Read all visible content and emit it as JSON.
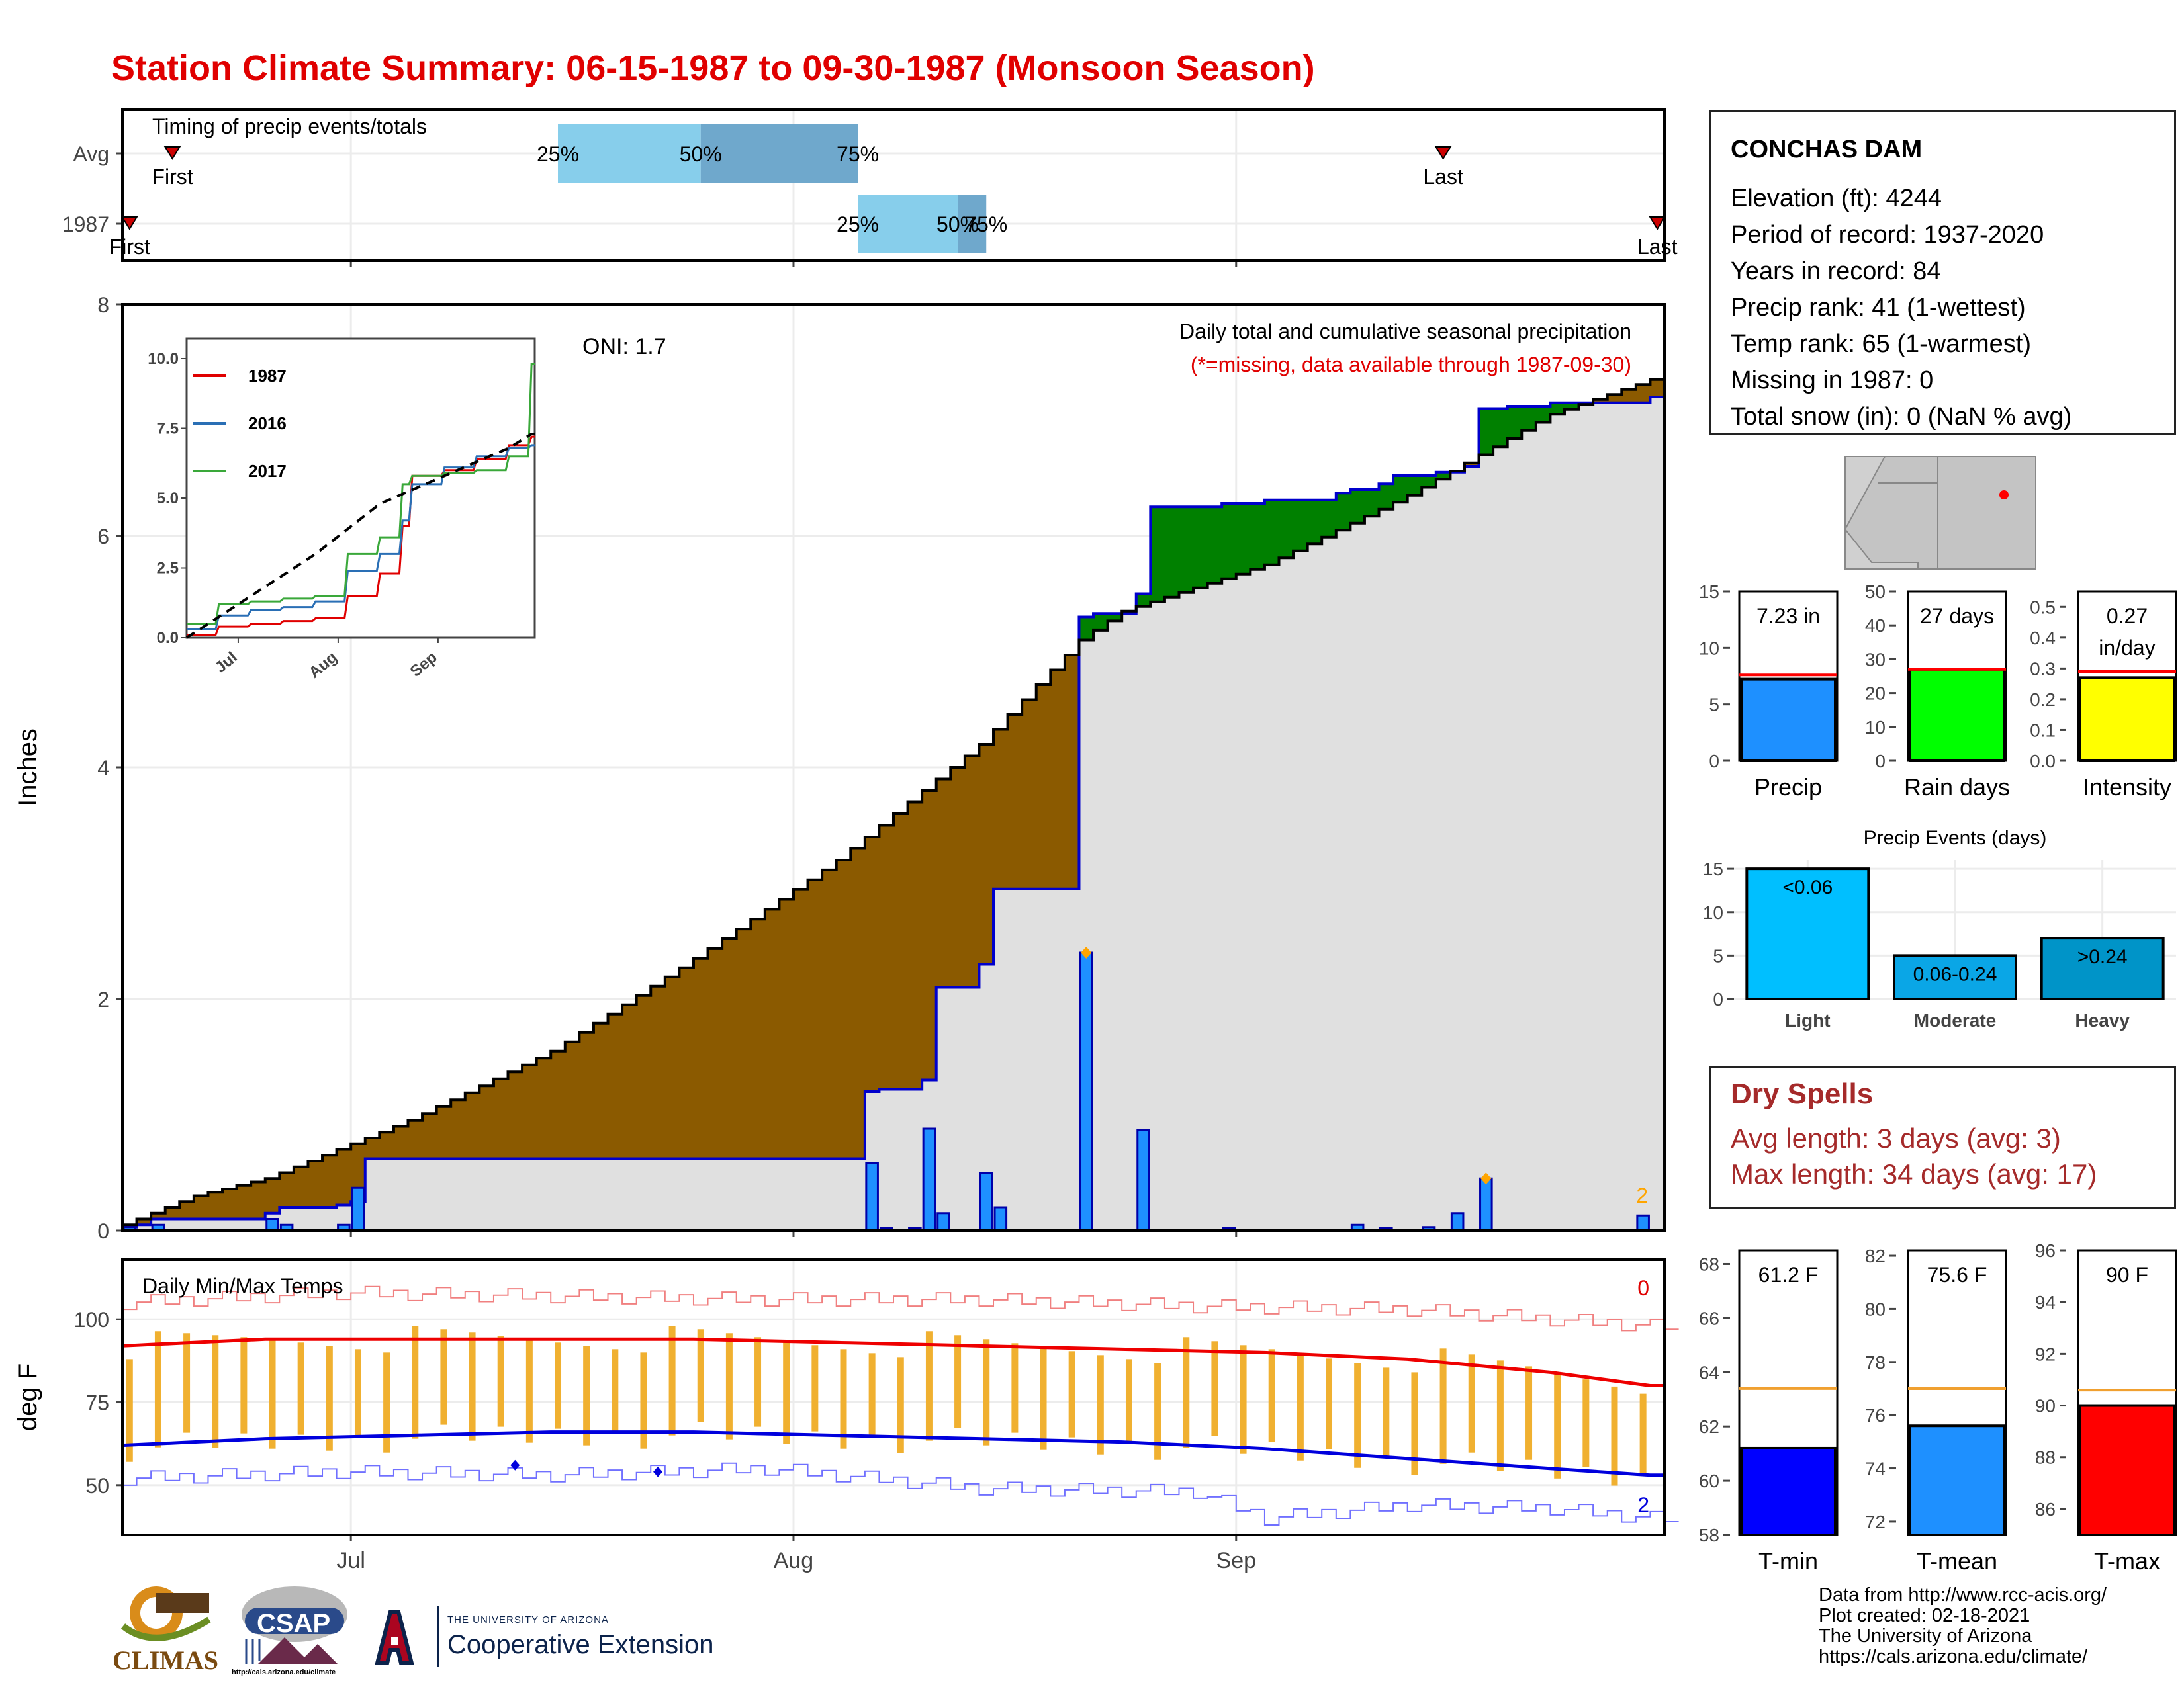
{
  "title": "Station Climate Summary: 06-15-1987 to 09-30-1987 (Monsoon Season)",
  "colors": {
    "title": "#e00000",
    "cum_avg_fill": "#8b5a00",
    "cum_above_fill": "#008000",
    "cum_area": "#e0e0e0",
    "precip_bar": "#1e90ff",
    "tmin_line": "#0000dd",
    "tmax_line": "#ee0000",
    "temp_bar": "#f0b030",
    "timing_light": "#87ceeb",
    "timing_dark": "#6fa8cc",
    "dry_spells": "#a52a2a"
  },
  "station": {
    "name": "CONCHAS DAM",
    "lines": [
      "Elevation (ft): 4244",
      "Period of record: 1937-2020",
      "Years in record: 84",
      "Precip rank: 41 (1-wettest)",
      "Temp rank: 65 (1-warmest)",
      "Missing in 1987: 0",
      "Total snow (in): 0 (NaN % avg)"
    ]
  },
  "dry_spells": {
    "header": "Dry Spells",
    "avg": "Avg length: 3 days (avg: 3)",
    "max": "Max length: 34 days (avg: 17)"
  },
  "credits": [
    "Data from http://www.rcc-acis.org/",
    "Plot created: 02-18-2021",
    "The University of Arizona",
    "https://cals.arizona.edu/climate/"
  ],
  "logos": {
    "climas": "CLIMAS",
    "csap": "CSAP",
    "ua_small": "THE UNIVERSITY OF ARIZONA",
    "ua_big": "Cooperative Extension",
    "csap_url": "http://cals.arizona.edu/climate"
  },
  "month_labels": [
    "Jul",
    "Aug",
    "Sep"
  ],
  "chart_data": [
    {
      "type": "timeline",
      "title": "Timing of precip events/totals",
      "rows": [
        {
          "name": "Avg",
          "first_label": "First",
          "last_label": "Last",
          "first": "06-18",
          "last": "09-15",
          "p25": "07-15",
          "p50": "07-25",
          "p75": "08-05",
          "labels": [
            "25%",
            "50%",
            "75%"
          ]
        },
        {
          "name": "1987",
          "first_label": "First",
          "last_label": "Last",
          "first": "06-15",
          "last": "09-30",
          "p25": "08-05",
          "p50": "08-12",
          "p75": "08-14",
          "labels": [
            "25%",
            "50%",
            "75%"
          ]
        }
      ]
    },
    {
      "type": "area",
      "title": "Daily total and cumulative seasonal precipitation",
      "subtitle": "(*=missing, data available through 1987-09-30)",
      "oni": "ONI: 1.7",
      "ylabel": "Inches",
      "ylim": [
        0,
        8
      ],
      "yticks": [
        0,
        2,
        4,
        6,
        8
      ],
      "missing_count": "2",
      "avg_cumulative": {
        "days": [
          0,
          5,
          10,
          15,
          20,
          30,
          40,
          50,
          60,
          67,
          70,
          80,
          90,
          100,
          107
        ],
        "values": [
          0.05,
          0.3,
          0.45,
          0.7,
          0.95,
          1.55,
          2.35,
          3.2,
          4.2,
          5.1,
          5.35,
          5.75,
          6.35,
          7.05,
          7.35
        ]
      },
      "cumulative_1987": {
        "days": [
          0,
          1,
          2,
          10,
          11,
          15,
          16,
          17,
          52,
          53,
          56,
          57,
          60,
          61,
          67,
          68,
          71,
          72,
          77,
          80,
          85,
          86,
          88,
          89,
          92,
          94,
          95,
          97,
          100,
          107
        ],
        "values": [
          0.03,
          0.05,
          0.1,
          0.15,
          0.2,
          0.22,
          0.25,
          0.62,
          1.2,
          1.22,
          1.3,
          2.1,
          2.3,
          2.95,
          5.3,
          5.33,
          5.5,
          6.25,
          6.28,
          6.31,
          6.37,
          6.4,
          6.45,
          6.52,
          6.55,
          6.6,
          7.1,
          7.12,
          7.15,
          7.2
        ]
      },
      "daily_1987": {
        "days": [
          0,
          2,
          10,
          11,
          15,
          16,
          52,
          53,
          55,
          56,
          57,
          60,
          61,
          67,
          71,
          77,
          86,
          88,
          91,
          93,
          95,
          106
        ],
        "values": [
          0.03,
          0.05,
          0.1,
          0.05,
          0.05,
          0.37,
          0.58,
          0.02,
          0.02,
          0.88,
          0.15,
          0.5,
          0.2,
          2.4,
          0.87,
          0.02,
          0.05,
          0.02,
          0.03,
          0.15,
          0.45,
          0.13
        ]
      }
    },
    {
      "type": "line",
      "inset_of": "cumulative precipitation",
      "ylim": [
        0,
        10
      ],
      "yticks": [
        "0.0",
        "2.5",
        "5.0",
        "7.5",
        "10.0"
      ],
      "xticks": [
        "Jul",
        "Aug",
        "Sep"
      ],
      "series": [
        {
          "name": "1987",
          "color": "#e00000",
          "days": [
            0,
            10,
            20,
            30,
            40,
            50,
            60,
            67,
            70,
            80,
            90,
            100,
            107
          ],
          "values": [
            0.1,
            0.4,
            0.5,
            0.6,
            0.7,
            1.5,
            2.3,
            4.0,
            5.8,
            6.0,
            6.4,
            6.9,
            7.2
          ]
        },
        {
          "name": "2016",
          "color": "#2a6fb5",
          "days": [
            0,
            10,
            20,
            30,
            40,
            50,
            60,
            67,
            70,
            80,
            90,
            100,
            107
          ],
          "values": [
            0.3,
            0.8,
            1.0,
            1.1,
            1.3,
            2.4,
            3.0,
            4.2,
            5.5,
            6.1,
            6.5,
            6.8,
            6.9
          ]
        },
        {
          "name": "2017",
          "color": "#3aa83a",
          "days": [
            0,
            10,
            20,
            30,
            40,
            50,
            60,
            67,
            70,
            80,
            90,
            100,
            107
          ],
          "values": [
            0.5,
            1.2,
            1.3,
            1.4,
            1.5,
            3.0,
            3.6,
            5.5,
            5.8,
            5.9,
            6.0,
            6.5,
            9.8
          ]
        },
        {
          "name": "avg",
          "dashed": true,
          "days": [
            0,
            20,
            40,
            60,
            80,
            100,
            107
          ],
          "values": [
            0.0,
            1.5,
            3.0,
            4.8,
            5.8,
            6.8,
            7.3
          ]
        }
      ]
    },
    {
      "type": "bar",
      "title": "Daily Min/Max Temps",
      "ylabel": "deg F",
      "ylim": [
        35,
        118
      ],
      "yticks": [
        50,
        75,
        100
      ],
      "missing_high": "0",
      "missing_low": "2",
      "avg_max": {
        "days": [
          0,
          10,
          20,
          30,
          40,
          50,
          60,
          70,
          80,
          90,
          100,
          107
        ],
        "values": [
          92,
          94,
          94,
          94,
          94,
          93,
          92,
          91,
          90,
          88,
          84,
          80
        ]
      },
      "avg_min": {
        "days": [
          0,
          10,
          20,
          30,
          40,
          50,
          60,
          70,
          80,
          90,
          100,
          107
        ],
        "values": [
          62,
          64,
          65,
          66,
          66,
          65,
          64,
          63,
          61,
          58,
          55,
          53
        ]
      },
      "max_record": {
        "days": [
          0,
          15,
          30,
          45,
          60,
          75,
          90,
          100,
          107
        ],
        "values": [
          105,
          108,
          107,
          106,
          106,
          104,
          103,
          100,
          98
        ]
      },
      "min_record": {
        "days": [
          0,
          15,
          30,
          45,
          60,
          75,
          80,
          90,
          100,
          107
        ],
        "values": [
          52,
          54,
          53,
          55,
          49,
          48,
          40,
          44,
          43,
          40
        ]
      }
    },
    {
      "type": "bar",
      "title": "Precip",
      "categories": [
        "Precip"
      ],
      "values": [
        7.23
      ],
      "avg": 7.6,
      "value_label": "7.23 in",
      "ylim": [
        0,
        15
      ],
      "yticks": [
        0,
        5,
        10,
        15
      ]
    },
    {
      "type": "bar",
      "title": "Rain days",
      "categories": [
        "Rain days"
      ],
      "values": [
        27
      ],
      "avg": 27,
      "value_label": "27 days",
      "ylim": [
        0,
        50
      ],
      "yticks": [
        0,
        10,
        20,
        30,
        40,
        50
      ]
    },
    {
      "type": "bar",
      "title": "Intensity",
      "categories": [
        "Intensity"
      ],
      "values": [
        0.27
      ],
      "avg": 0.29,
      "value_label": "0.27",
      "unit_label": "in/day",
      "ylim": [
        0,
        0.55
      ],
      "yticks": [
        "0.0",
        "0.1",
        "0.2",
        "0.3",
        "0.4",
        "0.5"
      ]
    },
    {
      "type": "bar",
      "title": "Precip Events (days)",
      "categories": [
        "Light",
        "Moderate",
        "Heavy"
      ],
      "values": [
        15,
        5,
        7
      ],
      "value_labels": [
        "<0.06",
        "0.06-0.24",
        ">0.24"
      ],
      "colors": [
        "#00bfff",
        "#0aa6e6",
        "#0094c8"
      ],
      "ylim": [
        0,
        16
      ],
      "yticks": [
        0,
        5,
        10,
        15
      ]
    },
    {
      "type": "bar",
      "title": "T-min",
      "categories": [
        "T-min"
      ],
      "values": [
        61.2
      ],
      "avg": 63.4,
      "value_label": "61.2 F",
      "ylim": [
        58,
        68.5
      ],
      "yticks": [
        58,
        60,
        62,
        64,
        66,
        68
      ]
    },
    {
      "type": "bar",
      "title": "T-mean",
      "categories": [
        "T-mean"
      ],
      "values": [
        75.6
      ],
      "avg": 77.0,
      "value_label": "75.6 F",
      "ylim": [
        71.5,
        82.2
      ],
      "yticks": [
        72,
        74,
        76,
        78,
        80,
        82
      ]
    },
    {
      "type": "bar",
      "title": "T-max",
      "categories": [
        "T-max"
      ],
      "values": [
        90
      ],
      "avg": 90.6,
      "value_label": "90 F",
      "ylim": [
        85,
        96
      ],
      "yticks": [
        86,
        88,
        90,
        92,
        94,
        96
      ]
    }
  ]
}
